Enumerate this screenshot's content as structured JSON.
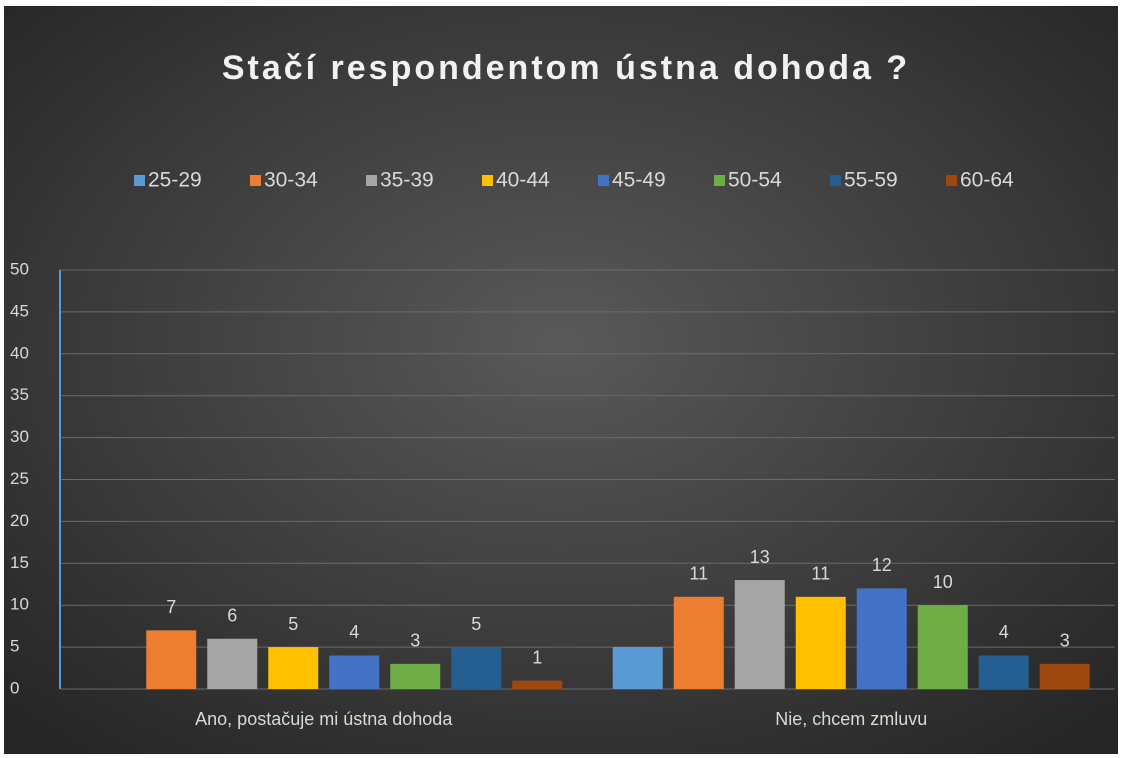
{
  "chart_data": {
    "type": "bar",
    "title": "Stačí respondentom ústna dohoda ?",
    "categories": [
      "Ano, postačuje mi ústna dohoda",
      "Nie, chcem zmluvu"
    ],
    "series": [
      {
        "name": "25-29",
        "color": "#5b9bd5",
        "values": [
          null,
          5
        ],
        "data_labels": false
      },
      {
        "name": "30-34",
        "color": "#ed7d31",
        "values": [
          7,
          11
        ]
      },
      {
        "name": "35-39",
        "color": "#a5a5a5",
        "values": [
          6,
          13
        ]
      },
      {
        "name": "40-44",
        "color": "#ffc000",
        "values": [
          5,
          11
        ]
      },
      {
        "name": "45-49",
        "color": "#4472c4",
        "values": [
          4,
          12
        ]
      },
      {
        "name": "50-54",
        "color": "#70ad47",
        "values": [
          3,
          10
        ]
      },
      {
        "name": "55-59",
        "color": "#255e91",
        "values": [
          5,
          4
        ]
      },
      {
        "name": "60-64",
        "color": "#9e480e",
        "values": [
          1,
          3
        ]
      }
    ],
    "ylim": [
      0,
      50
    ],
    "yticks": [
      0,
      5,
      10,
      15,
      20,
      25,
      30,
      35,
      40,
      45,
      50
    ],
    "grid": true,
    "legend": "top"
  }
}
